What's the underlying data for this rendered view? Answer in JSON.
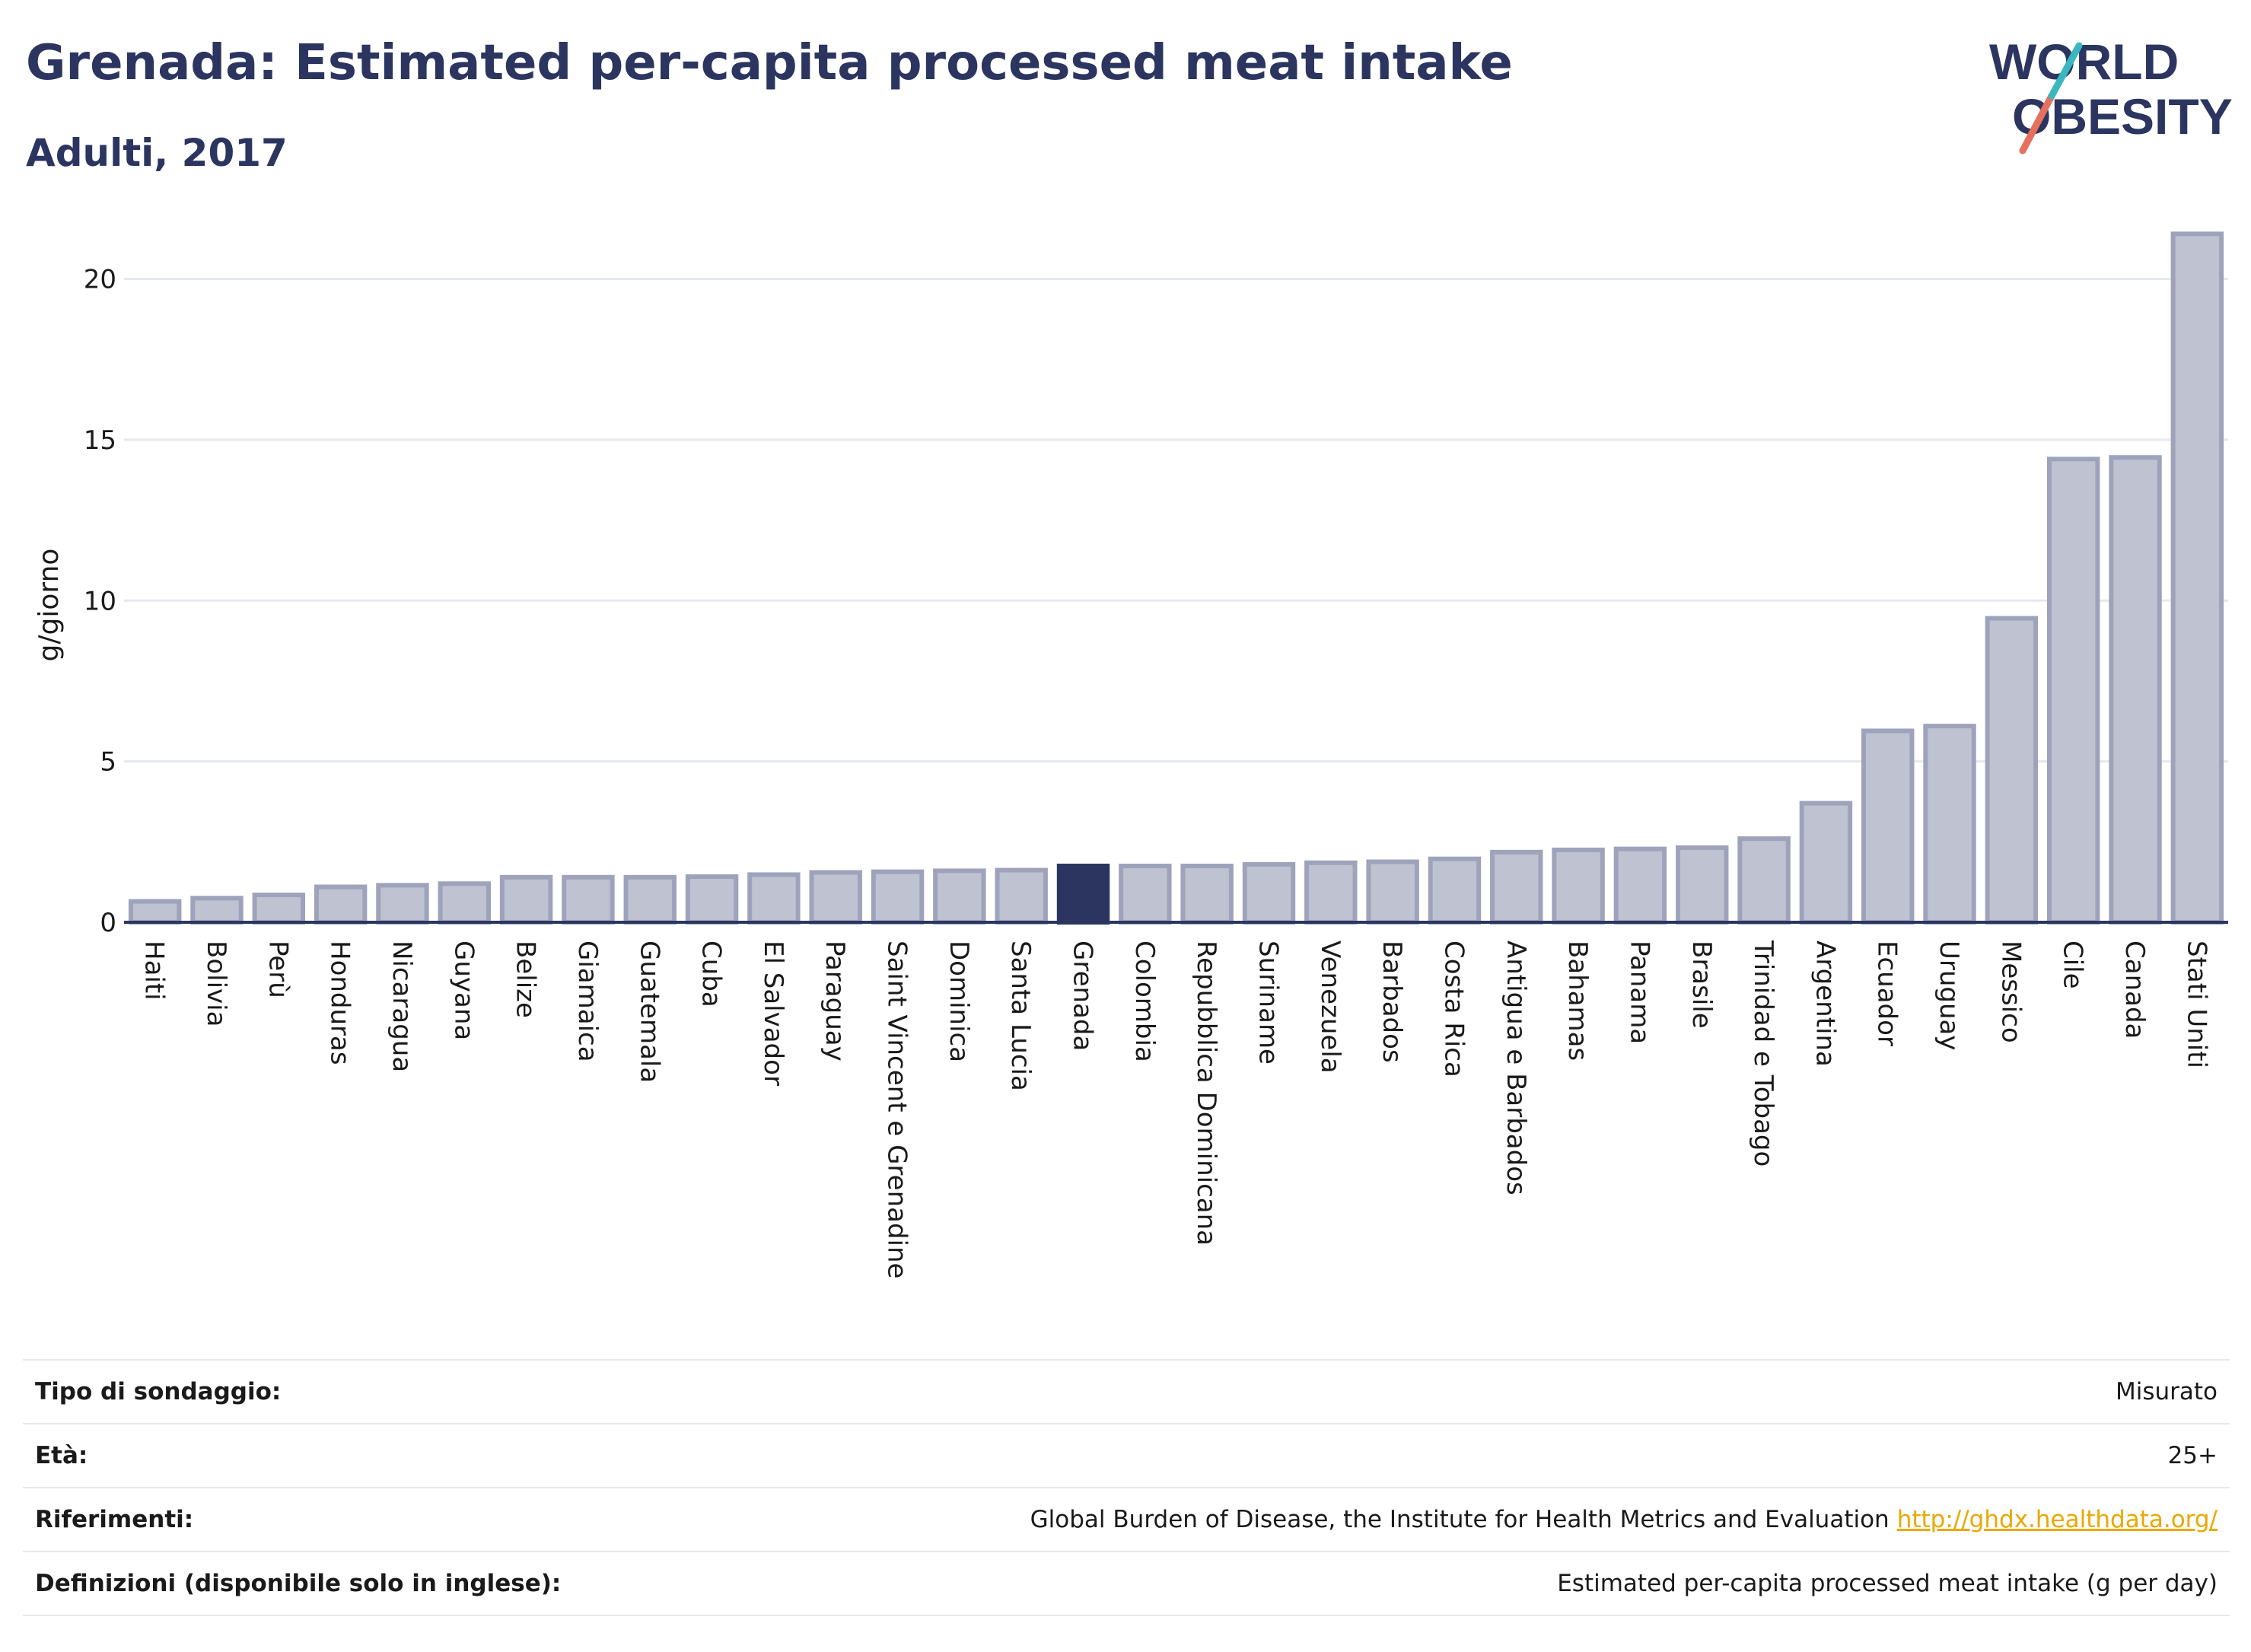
{
  "header": {
    "title": "Grenada: Estimated per-capita processed meat intake",
    "subtitle": "Adulti, 2017"
  },
  "logo": {
    "line1": "WORLD",
    "line2": "OBESITY",
    "colors": {
      "text": "#2b3560",
      "slash_teal": "#3ab7bf",
      "slash_coral": "#e5705e"
    }
  },
  "colors": {
    "bar": "#bec2d1",
    "bar_stroke": "#9ea3bb",
    "highlight": "#2b3560",
    "grid": "#e6e8ee",
    "axis": "#2b3560"
  },
  "chart_data": {
    "type": "bar",
    "ylabel": "g/giorno",
    "ylim": [
      0,
      22
    ],
    "yticks": [
      0,
      5,
      10,
      15,
      20
    ],
    "highlight": "Grenada",
    "categories": [
      "Haiti",
      "Bolivia",
      "Perù",
      "Honduras",
      "Nicaragua",
      "Guyana",
      "Belize",
      "Giamaica",
      "Guatemala",
      "Cuba",
      "El Salvador",
      "Paraguay",
      "Saint Vincent e Grenadine",
      "Dominica",
      "Santa Lucia",
      "Grenada",
      "Colombia",
      "Repubblica Dominicana",
      "Suriname",
      "Venezuela",
      "Barbados",
      "Costa Rica",
      "Antigua e Barbados",
      "Bahamas",
      "Panama",
      "Brasile",
      "Trinidad e Tobago",
      "Argentina",
      "Ecuador",
      "Uruguay",
      "Messico",
      "Cile",
      "Canada",
      "Stati Uniti"
    ],
    "values": [
      0.65,
      0.75,
      0.85,
      1.1,
      1.15,
      1.2,
      1.4,
      1.4,
      1.4,
      1.42,
      1.48,
      1.55,
      1.57,
      1.6,
      1.62,
      1.75,
      1.75,
      1.75,
      1.8,
      1.85,
      1.88,
      1.97,
      2.18,
      2.25,
      2.28,
      2.32,
      2.6,
      3.7,
      5.95,
      6.1,
      9.45,
      14.4,
      14.45,
      21.4
    ]
  },
  "info": [
    {
      "label": "Tipo di sondaggio:",
      "value": "Misurato"
    },
    {
      "label": "Età:",
      "value": "25+"
    },
    {
      "label": "Riferimenti:",
      "value": "Global Burden of Disease, the Institute for Health Metrics and Evaluation",
      "link": "http://ghdx.healthdata.org/"
    },
    {
      "label": "Definizioni (disponibile solo in inglese):",
      "value": "Estimated per-capita processed meat intake (g per day)"
    }
  ]
}
